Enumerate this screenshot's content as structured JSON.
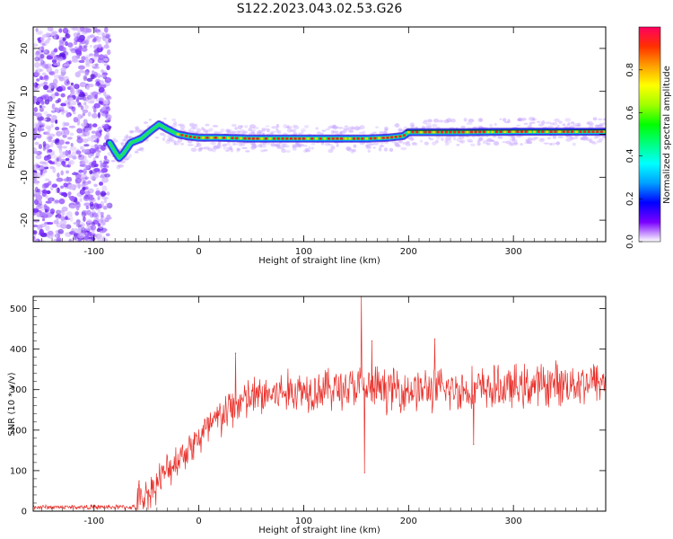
{
  "title": "S122.2023.043.02.53.G26",
  "colors": {
    "snr_line": "#e8302a",
    "text": "#111111",
    "axis": "#000000",
    "spectrum_ridge": "#ff2020",
    "scatter_dots": "#7a2cff"
  },
  "chart_data": [
    {
      "type": "heatmap",
      "title": "",
      "xlabel": "Height of straight line (km)",
      "ylabel": "Frequency (Hz)",
      "xlim": [
        -158,
        388
      ],
      "ylim": [
        -25,
        25
      ],
      "xticks": [
        -100,
        0,
        100,
        200,
        300
      ],
      "yticks": [
        -20,
        -10,
        0,
        10,
        20
      ],
      "colorbar": {
        "label": "Normalized spectral amplitude",
        "range": [
          0,
          1
        ],
        "ticks": [
          0.0,
          0.2,
          0.4,
          0.6,
          0.8
        ],
        "colormap": [
          "#ffffff",
          "#7a00ff",
          "#0000ff",
          "#00a0ff",
          "#00ffff",
          "#00ff80",
          "#00ff00",
          "#a0ff00",
          "#ffff00",
          "#ffa000",
          "#ff3000",
          "#ff0060"
        ]
      },
      "noise_region": {
        "x_start": -158,
        "x_end": -85,
        "freq_range": [
          -25,
          25
        ]
      },
      "ridge": {
        "x": [
          -85,
          -80,
          -76,
          -72,
          -65,
          -55,
          -45,
          -38,
          -30,
          -20,
          -10,
          0,
          20,
          50,
          80,
          100,
          130,
          160,
          180,
          195,
          200,
          250,
          300,
          350,
          388
        ],
        "freq": [
          -2.0,
          -4.0,
          -5.5,
          -4.5,
          -2.0,
          -1.0,
          1.0,
          2.3,
          1.2,
          0.0,
          -0.5,
          -0.8,
          -0.8,
          -1.0,
          -1.0,
          -1.0,
          -1.0,
          -1.0,
          -0.8,
          -0.4,
          0.5,
          0.5,
          0.6,
          0.6,
          0.6
        ]
      }
    },
    {
      "type": "line",
      "title": "",
      "xlabel": "Height of straight line (km)",
      "ylabel": "SNR (10 * v/v)",
      "xlim": [
        -158,
        388
      ],
      "ylim": [
        0,
        530
      ],
      "xticks": [
        -100,
        0,
        100,
        200,
        300
      ],
      "yticks": [
        0,
        100,
        200,
        300,
        400,
        500
      ],
      "trend": {
        "x": [
          -158,
          -60,
          -55,
          -40,
          -20,
          0,
          20,
          40,
          60,
          100,
          150,
          200,
          250,
          300,
          340,
          388
        ],
        "y": [
          10,
          10,
          25,
          70,
          130,
          180,
          230,
          270,
          285,
          300,
          305,
          300,
          300,
          305,
          315,
          320
        ]
      },
      "spikes": [
        {
          "x": -57,
          "y": 75
        },
        {
          "x": 35,
          "y": 390
        },
        {
          "x": 155,
          "y": 530
        },
        {
          "x": 158,
          "y": 95
        },
        {
          "x": 165,
          "y": 420
        },
        {
          "x": 225,
          "y": 425
        },
        {
          "x": 262,
          "y": 165
        }
      ]
    }
  ]
}
